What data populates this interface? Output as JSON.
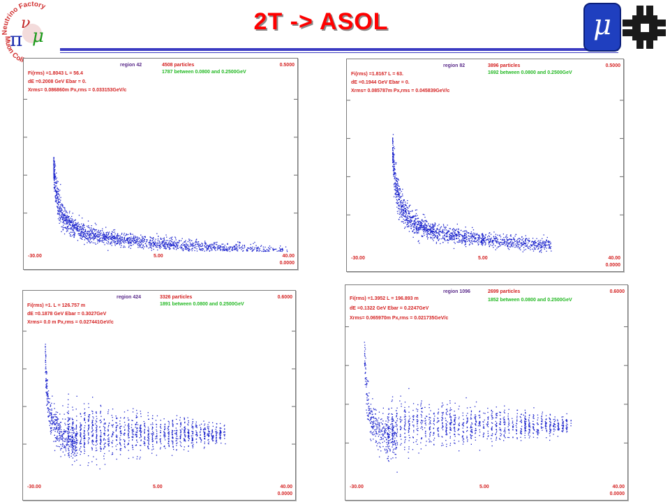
{
  "slide": {
    "title": "2T -> ASOL",
    "logos": {
      "left": {
        "text_top": "Neutrino Factory",
        "text_bottom": "Muon Collider",
        "glyphs": [
          "ν",
          "π",
          "μ"
        ]
      },
      "right_mu": {
        "glyph": "μ",
        "color": "#1f3fbf"
      },
      "right_fermilab": {
        "icon": "fermilab-logo",
        "color": "#1a1a1a"
      }
    }
  },
  "chart_data": [
    {
      "type": "scatter",
      "header": {
        "region": "region   42",
        "particles": "4508 particles",
        "between": "1787 between 0.0800 and 0.2500GeV",
        "fi": "Fi(rms) =1.8043     L =  56.4",
        "de": "dE =0.2008 GeV     Ebar =  0.",
        "xrms": "Xrms= 0.086860m     Px,rms = 0.033153GeV/c"
      },
      "x_ticks": [
        "-30.00",
        "5.00",
        "40.00"
      ],
      "y_ticks": [
        "0.5000",
        "0.0000"
      ],
      "xlim": [
        -30,
        40
      ],
      "ylim": [
        0,
        0.5
      ],
      "color": "#1a22cc",
      "pattern": "curve",
      "shape": {
        "x0": -23,
        "x1": 38,
        "spread": 0.035,
        "center_a": 0.09,
        "center_b": 0.05,
        "center_c": 0.03
      },
      "n_points": 1800
    },
    {
      "type": "scatter",
      "header": {
        "region": "region   82",
        "particles": "3896 particles",
        "between": "1692 between 0.0800 and 0.2500GeV",
        "fi": "Fi(rms) =1.8167     L =  63.",
        "de": "dE =0.1944 GeV     Ebar =  0.",
        "xrms": "Xrms= 0.085787m     Px,rms = 0.045839GeV/c"
      },
      "x_ticks": [
        "-30.00",
        "5.00",
        "40.00"
      ],
      "y_ticks": [
        "0.5000",
        "0.0000"
      ],
      "xlim": [
        -30,
        40
      ],
      "ylim": [
        0,
        0.5
      ],
      "color": "#1a22cc",
      "pattern": "curve",
      "shape": {
        "x0": -19,
        "x1": 22,
        "spread": 0.04,
        "center_a": 0.11,
        "center_b": 0.08,
        "center_c": 0.04
      },
      "n_points": 1500
    },
    {
      "type": "scatter",
      "header": {
        "region": "region   424",
        "particles": "3326 particles",
        "between": "1891 between 0.0800 and 0.2500GeV",
        "fi": "Fi(rms) =1.       L = 126.757 m",
        "de": "dE =0.1878 GeV     Ebar =  0.3027GeV",
        "xrms": "Xrms= 0.0     m     Px,rms = 0.027441GeV/c"
      },
      "x_ticks": [
        "-30.00",
        "5.00",
        "40.00"
      ],
      "y_ticks": [
        "0.6000",
        "0.0000"
      ],
      "xlim": [
        -30,
        40
      ],
      "ylim": [
        0,
        0.6
      ],
      "color": "#1a22cc",
      "pattern": "bunched",
      "shape": {
        "x0": -25,
        "x1": 22,
        "y_center": 0.155,
        "y_spread": 0.05,
        "bunch_step": 1.05
      },
      "n_points": 1700
    },
    {
      "type": "scatter",
      "header": {
        "region": "region  1096",
        "particles": "2699 particles",
        "between": "1852 between 0.0800 and 0.2500GeV",
        "fi": "Fi(rms) =1.3952     L = 196.893 m",
        "de": "dE =0.1322 GeV     Ebar =  0.2247GeV",
        "xrms": "Xrms= 0.065970m     Px,rms = 0.021735GeV/c"
      },
      "x_ticks": [
        "-30.00",
        "5.00",
        "40.00"
      ],
      "y_ticks": [
        "0.6000",
        "0.0000"
      ],
      "xlim": [
        -30,
        40
      ],
      "ylim": [
        0,
        0.6
      ],
      "color": "#1a22cc",
      "pattern": "bunched",
      "shape": {
        "x0": -26,
        "x1": 26,
        "y_center": 0.175,
        "y_spread": 0.045,
        "bunch_step": 1.05
      },
      "n_points": 1500
    }
  ]
}
